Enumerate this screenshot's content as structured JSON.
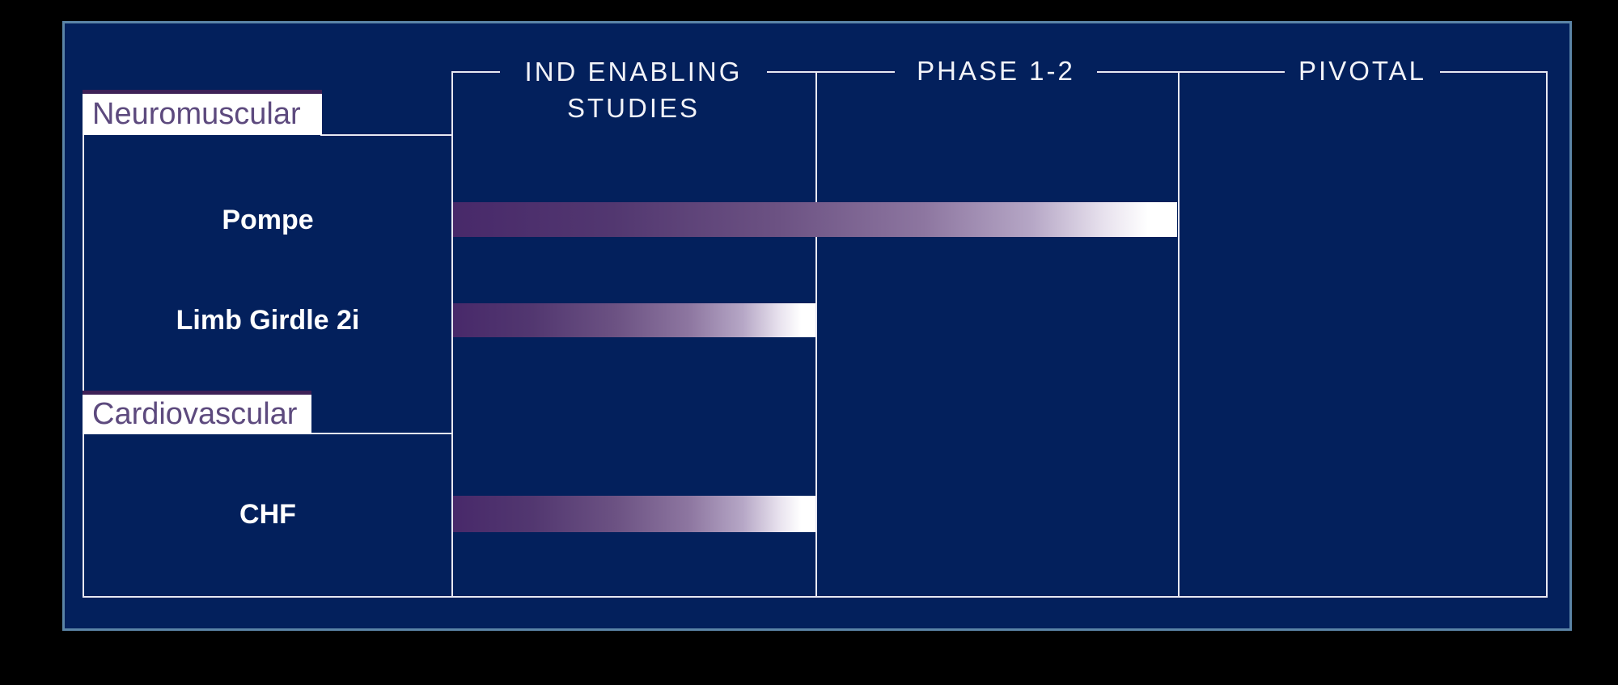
{
  "pipeline": {
    "stages": [
      {
        "label": "IND ENABLING STUDIES",
        "line1": "IND ENABLING",
        "line2": "STUDIES"
      },
      {
        "label": "PHASE 1-2",
        "line1": "PHASE 1-2"
      },
      {
        "label": "PIVOTAL",
        "line1": "PIVOTAL"
      }
    ],
    "sections": [
      {
        "label": "Neuromuscular"
      },
      {
        "label": "Cardiovascular"
      }
    ]
  },
  "colors": {
    "slide_background": "#03205c",
    "slide_border": "#5b84a6",
    "frame_lines": "#e8e8f2",
    "header_text": "#f2f3f8",
    "row_label_text": "#ffffff",
    "section_label_background": "#ffffff",
    "section_label_text": "#5d4a7e",
    "section_label_top_bar": "#3e2157",
    "bar_gradient_start": "#48296a",
    "bar_gradient_end": "#ffffff"
  },
  "chart_data": {
    "type": "bar",
    "orientation": "horizontal",
    "title": "",
    "stages": [
      "IND ENABLING STUDIES",
      "PHASE 1-2",
      "PIVOTAL"
    ],
    "categories": [
      "Neuromuscular",
      "Cardiovascular"
    ],
    "programs": [
      {
        "category": "Neuromuscular",
        "name": "Pompe",
        "stage_reached": "PHASE 1-2",
        "stages_completed": 2,
        "bar_fraction": 0.662
      },
      {
        "category": "Neuromuscular",
        "name": "Limb Girdle 2i",
        "stage_reached": "IND ENABLING STUDIES",
        "stages_completed": 1,
        "bar_fraction": 0.331
      },
      {
        "category": "Cardiovascular",
        "name": "CHF",
        "stage_reached": "IND ENABLING STUDIES",
        "stages_completed": 1,
        "bar_fraction": 0.331
      }
    ],
    "legend": false,
    "gridlines": "stage-column-dividers"
  }
}
